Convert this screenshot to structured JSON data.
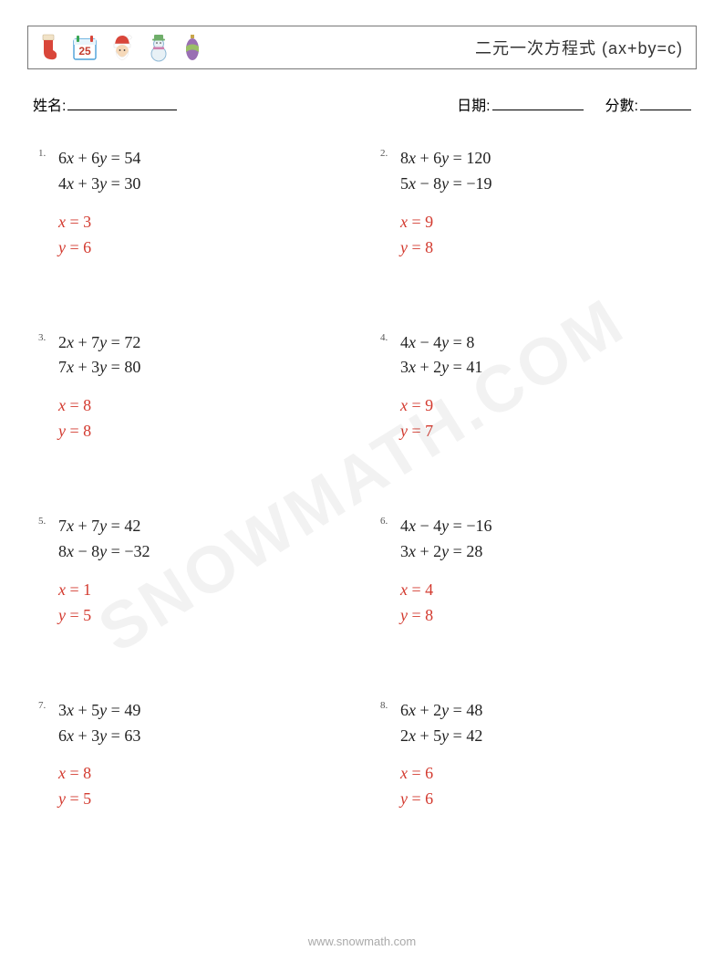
{
  "header": {
    "title": "二元一次方程式 (ax+by=c)",
    "icon_colors": {
      "stocking": "#d9463a",
      "calendar_border": "#4aa0d8",
      "calendar_top_green": "#3aa655",
      "calendar_top_red": "#d9463a",
      "calendar_text": "#c43c2e",
      "santa_red": "#d9463a",
      "santa_skin": "#f6d9b9",
      "snowman_body": "#e8f1f6",
      "snowman_outline": "#8fb9d6",
      "snowman_hat": "#6fae6a",
      "snowman_scarf": "#d07fae",
      "ornament_purple": "#9a6fb3",
      "ornament_green": "#9abf66",
      "ornament_top": "#c8a64a"
    }
  },
  "labels": {
    "name": "姓名:",
    "date": "日期:",
    "score": "分數:"
  },
  "problems": [
    {
      "n": "1.",
      "eq1": "6x + 6y = 54",
      "eq2": "4x + 3y = 30",
      "a1": "x = 3",
      "a2": "y = 6"
    },
    {
      "n": "2.",
      "eq1": "8x + 6y = 120",
      "eq2": "5x − 8y = −19",
      "a1": "x = 9",
      "a2": "y = 8"
    },
    {
      "n": "3.",
      "eq1": "2x + 7y = 72",
      "eq2": "7x + 3y = 80",
      "a1": "x = 8",
      "a2": "y = 8"
    },
    {
      "n": "4.",
      "eq1": "4x − 4y = 8",
      "eq2": "3x + 2y = 41",
      "a1": "x = 9",
      "a2": "y = 7"
    },
    {
      "n": "5.",
      "eq1": "7x + 7y = 42",
      "eq2": "8x − 8y = −32",
      "a1": "x = 1",
      "a2": "y = 5"
    },
    {
      "n": "6.",
      "eq1": "4x − 4y = −16",
      "eq2": "3x + 2y = 28",
      "a1": "x = 4",
      "a2": "y = 8"
    },
    {
      "n": "7.",
      "eq1": "3x + 5y = 49",
      "eq2": "6x + 3y = 63",
      "a1": "x = 8",
      "a2": "y = 5"
    },
    {
      "n": "8.",
      "eq1": "6x + 2y = 48",
      "eq2": "2x + 5y = 42",
      "a1": "x = 6",
      "a2": "y = 6"
    }
  ],
  "style": {
    "answer_color": "#d33a2f",
    "equation_color": "#222222",
    "page_bg": "#ffffff",
    "border_color": "#777777",
    "equation_fontsize": 18,
    "number_fontsize": 11,
    "title_fontsize": 18
  },
  "calendar_text": "25",
  "watermark": "SNOWMATH.COM",
  "footer": "www.snowmath.com"
}
